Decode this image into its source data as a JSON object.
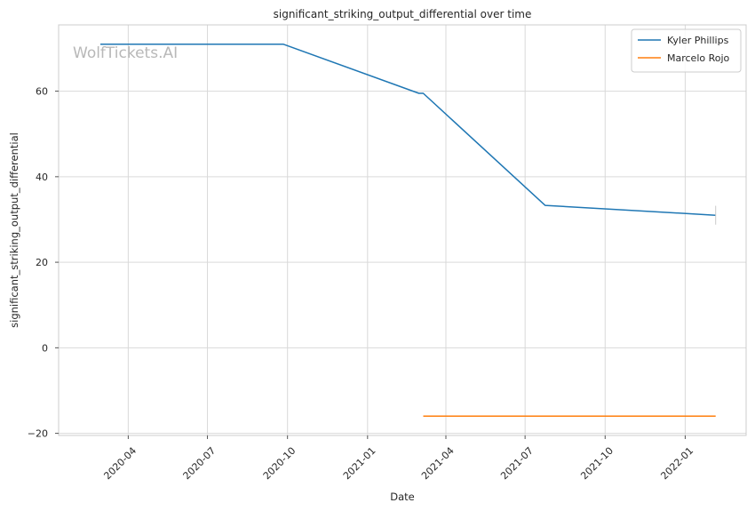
{
  "chart_data": {
    "type": "line",
    "title": "significant_striking_output_differential over time",
    "xlabel": "Date",
    "ylabel": "significant_striking_output_differential",
    "watermark": "WolfTickets.AI",
    "xlim": [
      "2020-01-12",
      "2022-03-12"
    ],
    "ylim": [
      -20.5,
      75.5
    ],
    "x_ticks": [
      "2020-04-01",
      "2020-07-01",
      "2020-10-01",
      "2021-01-01",
      "2021-04-01",
      "2021-07-01",
      "2021-10-01",
      "2022-01-01"
    ],
    "x_tick_labels": [
      "2020-04",
      "2020-07",
      "2020-10",
      "2021-01",
      "2021-04",
      "2021-07",
      "2021-10",
      "2022-01"
    ],
    "y_ticks": [
      -20,
      0,
      20,
      40,
      60
    ],
    "y_tick_labels": [
      "−20",
      "0",
      "20",
      "40",
      "60"
    ],
    "grid": true,
    "legend_position": "top-right",
    "series": [
      {
        "name": "Kyler Phillips",
        "color": "#1f77b4",
        "points": [
          {
            "x": "2020-02-29",
            "y": 71.0
          },
          {
            "x": "2020-09-26",
            "y": 71.0
          },
          {
            "x": "2021-03-01",
            "y": 59.5
          },
          {
            "x": "2021-03-06",
            "y": 59.5
          },
          {
            "x": "2021-07-24",
            "y": 33.3
          },
          {
            "x": "2022-02-05",
            "y": 31.0
          }
        ],
        "error_bar": {
          "x": "2022-02-05",
          "low": 28.8,
          "high": 33.2
        }
      },
      {
        "name": "Marcelo Rojo",
        "color": "#ff7f0e",
        "points": [
          {
            "x": "2021-03-06",
            "y": -16.0
          },
          {
            "x": "2022-02-05",
            "y": -16.0
          }
        ]
      }
    ]
  }
}
